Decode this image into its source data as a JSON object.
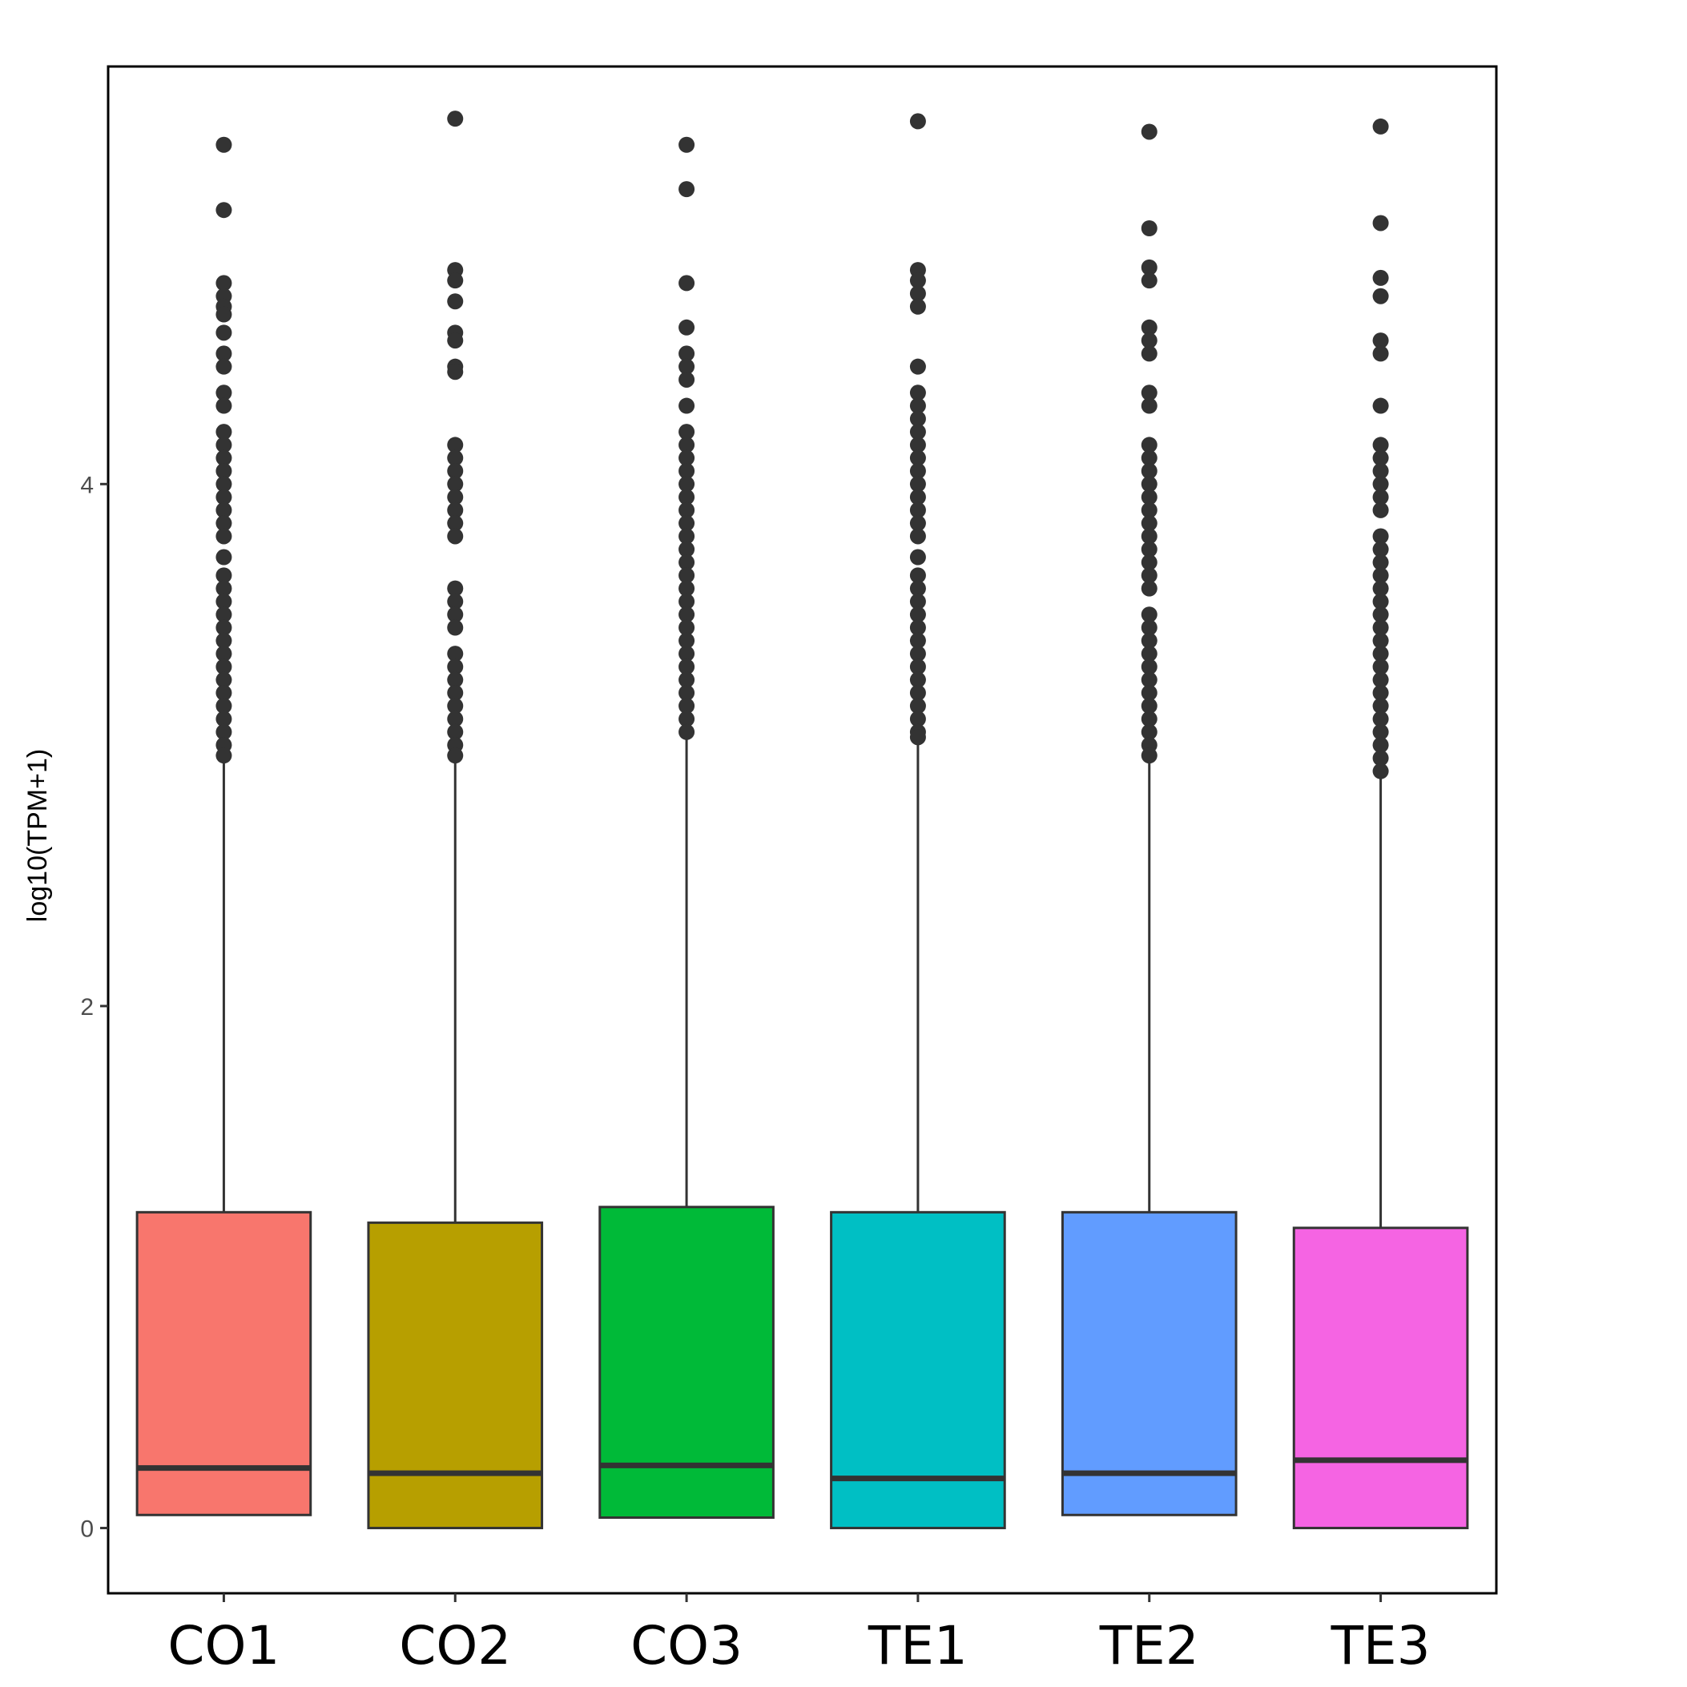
{
  "chart_data": {
    "type": "boxplot",
    "title": "",
    "xlabel": "",
    "ylabel": "log10(TPM+1)",
    "ylim": [
      -0.25,
      5.6
    ],
    "yticks": [
      0,
      2,
      4
    ],
    "grid": false,
    "legend": "none",
    "categories": [
      "CO1",
      "CO2",
      "CO3",
      "TE1",
      "TE2",
      "TE3"
    ],
    "series": [
      {
        "category": "CO1",
        "color": "#F8766D",
        "q1": 0.05,
        "median": 0.23,
        "q3": 1.21,
        "whisker_low": 0.05,
        "whisker_high": 1.21,
        "outliers": [
          5.3,
          5.05,
          4.77,
          4.72,
          4.68,
          4.65,
          4.58,
          4.5,
          4.45,
          4.35,
          4.3,
          4.2,
          4.15,
          4.1,
          4.05,
          4.0,
          3.95,
          3.9,
          3.85,
          3.8,
          3.72,
          3.65,
          3.6,
          3.55,
          3.5,
          3.45,
          3.4,
          3.35,
          3.3,
          3.25,
          3.2,
          3.15,
          3.1,
          3.05,
          3.0,
          2.96
        ]
      },
      {
        "category": "CO2",
        "color": "#B79F00",
        "q1": 0.0,
        "median": 0.21,
        "q3": 1.17,
        "whisker_low": 0.0,
        "whisker_high": 1.17,
        "outliers": [
          5.4,
          4.82,
          4.78,
          4.7,
          4.58,
          4.55,
          4.45,
          4.43,
          4.15,
          4.1,
          4.05,
          4.0,
          3.95,
          3.9,
          3.85,
          3.8,
          3.6,
          3.55,
          3.5,
          3.45,
          3.35,
          3.3,
          3.25,
          3.2,
          3.15,
          3.1,
          3.05,
          3.0,
          2.96
        ]
      },
      {
        "category": "CO3",
        "color": "#00BA38",
        "q1": 0.04,
        "median": 0.24,
        "q3": 1.23,
        "whisker_low": 0.04,
        "whisker_high": 1.23,
        "outliers": [
          5.3,
          5.13,
          4.77,
          4.6,
          4.5,
          4.45,
          4.4,
          4.3,
          4.2,
          4.15,
          4.1,
          4.05,
          4.0,
          3.95,
          3.9,
          3.85,
          3.8,
          3.75,
          3.7,
          3.65,
          3.6,
          3.55,
          3.5,
          3.45,
          3.4,
          3.35,
          3.3,
          3.25,
          3.2,
          3.15,
          3.1,
          3.05
        ]
      },
      {
        "category": "TE1",
        "color": "#00BFC4",
        "q1": 0.0,
        "median": 0.19,
        "q3": 1.21,
        "whisker_low": 0.0,
        "whisker_high": 1.21,
        "outliers": [
          5.39,
          4.82,
          4.78,
          4.73,
          4.68,
          4.45,
          4.35,
          4.3,
          4.25,
          4.2,
          4.15,
          4.1,
          4.05,
          4.0,
          3.95,
          3.9,
          3.85,
          3.8,
          3.72,
          3.65,
          3.6,
          3.55,
          3.5,
          3.45,
          3.4,
          3.35,
          3.3,
          3.25,
          3.2,
          3.15,
          3.1,
          3.05,
          3.03
        ]
      },
      {
        "category": "TE2",
        "color": "#619CFF",
        "q1": 0.05,
        "median": 0.21,
        "q3": 1.21,
        "whisker_low": 0.05,
        "whisker_high": 1.21,
        "outliers": [
          5.35,
          4.98,
          4.83,
          4.78,
          4.6,
          4.55,
          4.5,
          4.35,
          4.3,
          4.15,
          4.1,
          4.05,
          4.0,
          3.95,
          3.9,
          3.85,
          3.8,
          3.75,
          3.7,
          3.65,
          3.6,
          3.5,
          3.45,
          3.4,
          3.35,
          3.3,
          3.25,
          3.2,
          3.15,
          3.1,
          3.05,
          3.0,
          2.96
        ]
      },
      {
        "category": "TE3",
        "color": "#F564E3",
        "q1": 0.0,
        "median": 0.26,
        "q3": 1.15,
        "whisker_low": 0.0,
        "whisker_high": 1.15,
        "outliers": [
          5.37,
          5.0,
          4.79,
          4.72,
          4.55,
          4.5,
          4.3,
          4.15,
          4.1,
          4.05,
          4.0,
          3.95,
          3.9,
          3.8,
          3.75,
          3.7,
          3.65,
          3.6,
          3.55,
          3.5,
          3.45,
          3.4,
          3.35,
          3.3,
          3.25,
          3.2,
          3.15,
          3.1,
          3.05,
          3.0,
          2.95,
          2.9
        ]
      }
    ]
  }
}
